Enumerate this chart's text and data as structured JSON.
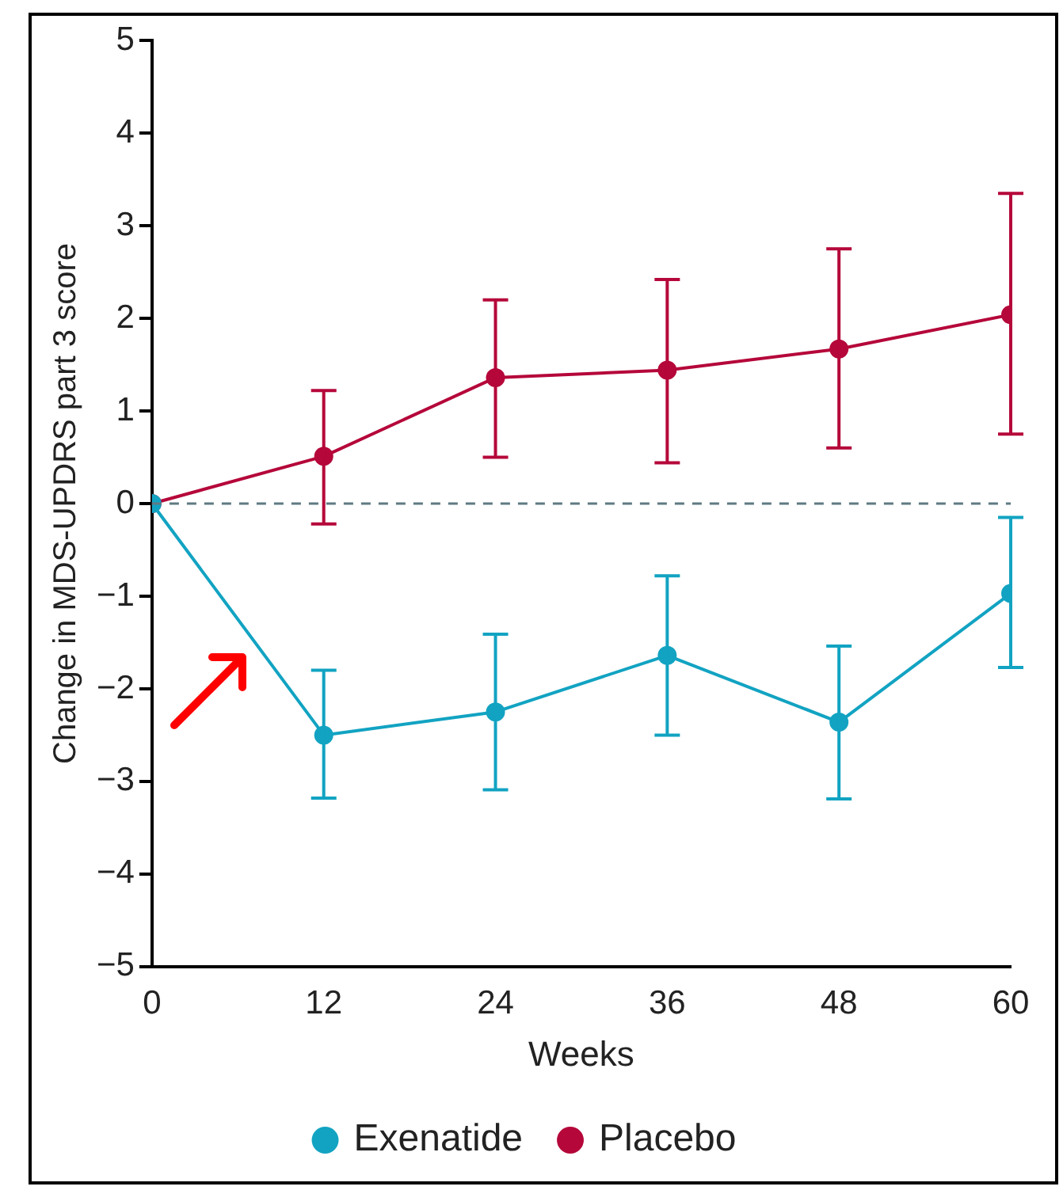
{
  "chart_data": {
    "type": "line",
    "xlabel": "Weeks",
    "ylabel": "Change in MDS-UPDRS part 3 score",
    "x": [
      0,
      12,
      24,
      36,
      48,
      60
    ],
    "xlim": [
      0,
      60
    ],
    "xticks": [
      0,
      12,
      24,
      36,
      48,
      60
    ],
    "ylim": [
      -5,
      5
    ],
    "yticks": [
      {
        "value": -5,
        "label": "−5"
      },
      {
        "value": -4,
        "label": "−4"
      },
      {
        "value": -3,
        "label": "−3"
      },
      {
        "value": -2,
        "label": "−2"
      },
      {
        "value": -1,
        "label": "−1"
      },
      0,
      1,
      2,
      3,
      4,
      5
    ],
    "series": [
      {
        "name": "Exenatide",
        "color": "#12a3c2",
        "values": [
          0,
          -2.5,
          -2.25,
          -1.64,
          -2.36,
          -0.97
        ],
        "errors": [
          null,
          [
            -3.18,
            -1.8
          ],
          [
            -3.09,
            -1.41
          ],
          [
            -2.5,
            -0.78
          ],
          [
            -3.19,
            -1.54
          ],
          [
            -1.77,
            -0.15
          ]
        ]
      },
      {
        "name": "Placebo",
        "color": "#b5073a",
        "values": [
          0,
          0.51,
          1.36,
          1.44,
          1.67,
          2.04
        ],
        "errors": [
          null,
          [
            -0.22,
            1.22
          ],
          [
            0.5,
            2.2
          ],
          [
            0.44,
            2.42
          ],
          [
            0.6,
            2.75
          ],
          [
            0.75,
            3.35
          ]
        ]
      }
    ],
    "ref_lines": [
      {
        "axis": "y",
        "value": 0,
        "color": "#5f7a82",
        "line_style": "dashed"
      }
    ],
    "marker": "circle",
    "line_style": "solid",
    "grid": false,
    "legend": "bottom"
  }
}
